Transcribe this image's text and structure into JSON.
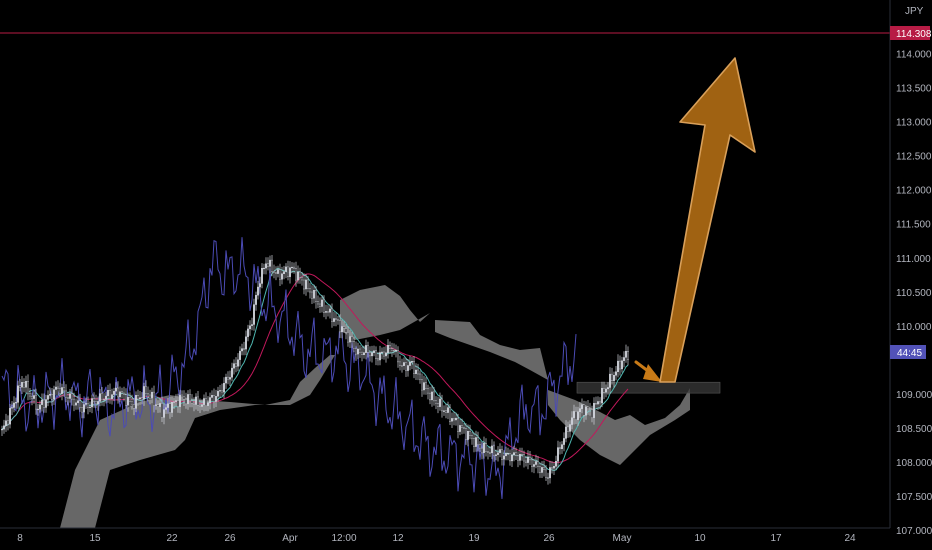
{
  "currency": "JPY",
  "countdown": "44:45",
  "colors": {
    "background": "#000000",
    "bull_candle": "#d1d4dc",
    "bear_candle": "#d1d4dc",
    "tenkan": "#4fb6b0",
    "kijun": "#c2185b",
    "chikou": "#4b4bb5",
    "cloud": "#8f8f8f",
    "target_line": "#b71c45",
    "arrow": "#c87a17",
    "zone": "#3a3a3a",
    "countdown_badge": "#5252b8"
  },
  "chart_data": {
    "type": "candlestick",
    "symbol_currency": "JPY",
    "y_ticks": [
      "114.000",
      "113.500",
      "113.000",
      "112.500",
      "112.000",
      "111.500",
      "111.000",
      "110.500",
      "110.000",
      "109.000",
      "108.500",
      "108.000",
      "107.500",
      "107.000"
    ],
    "ylim": [
      106.9,
      114.5
    ],
    "x_ticks": [
      "8",
      "15",
      "22",
      "26",
      "Apr",
      "12:00",
      "12",
      "19",
      "26",
      "May",
      "10",
      "17",
      "24"
    ],
    "target_level": {
      "label": "114.308",
      "value": 114.308
    },
    "indicators": [
      "Ichimoku Tenkan-sen",
      "Ichimoku Kijun-sen",
      "Ichimoku Chikou span",
      "Ichimoku cloud"
    ],
    "annotations": [
      {
        "type": "support-zone",
        "price_low": 109.02,
        "price_high": 109.18
      },
      {
        "type": "small-arrow",
        "direction": "down-right",
        "target_price": 109.05
      },
      {
        "type": "big-arrow",
        "direction": "up",
        "from_price": 109.05,
        "to_price": 113.9
      }
    ]
  }
}
